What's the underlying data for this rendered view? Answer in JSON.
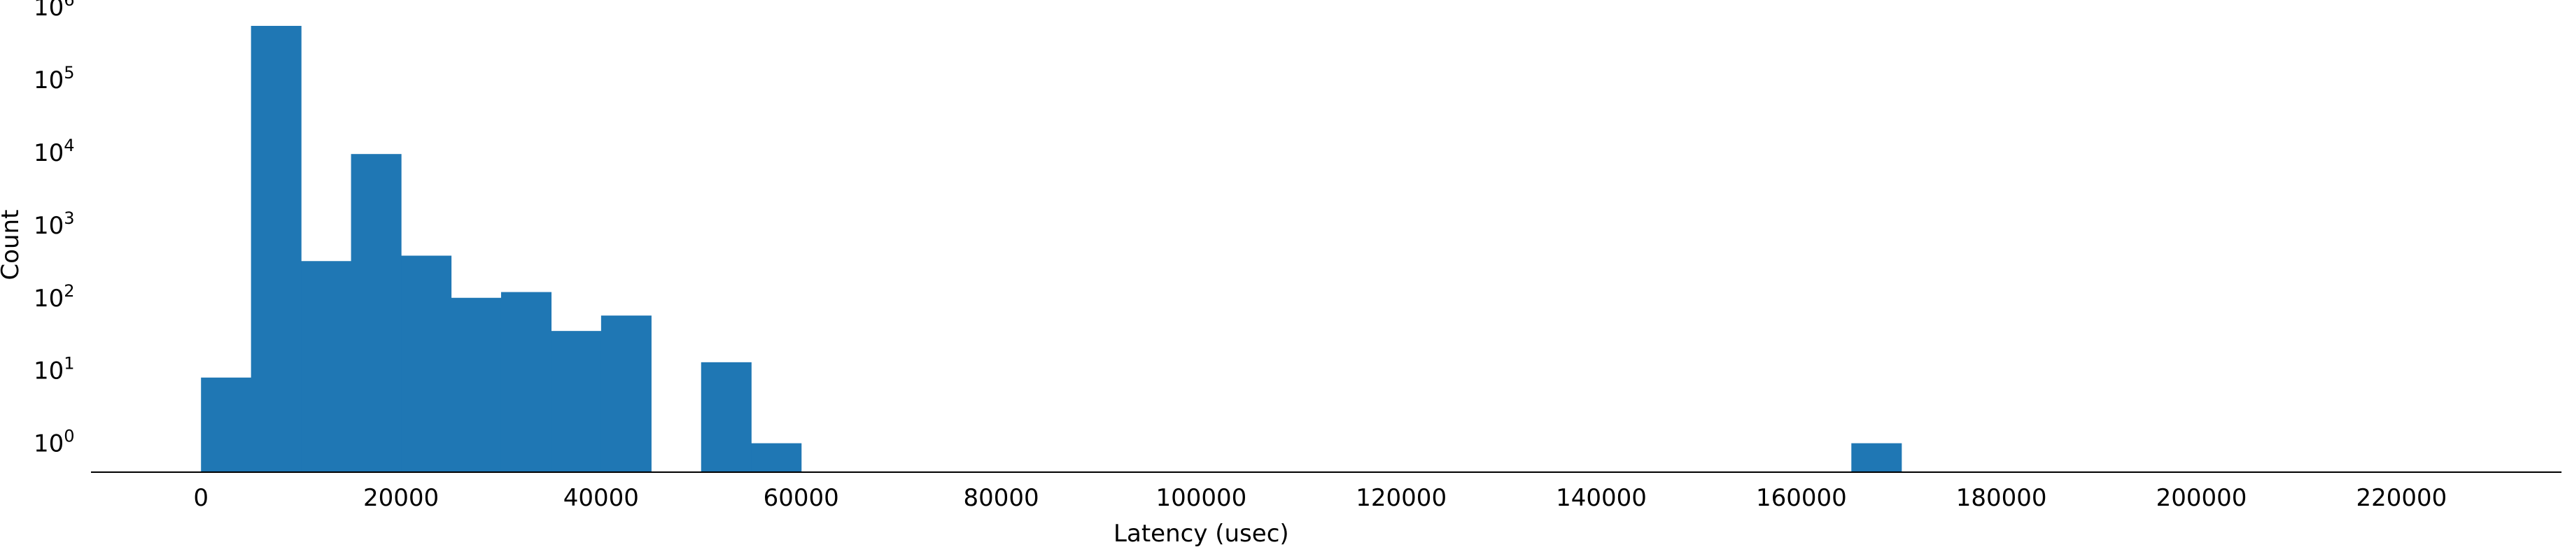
{
  "chart_data": {
    "type": "bar",
    "title": "",
    "xlabel": "Latency (usec)",
    "ylabel": "Count",
    "yscale": "log",
    "ylim": [
      0.4,
      1000000
    ],
    "xlim": [
      -11000,
      236000
    ],
    "bin_width": 5000,
    "bars_color": "#1f77b4",
    "x_ticks": [
      0,
      20000,
      40000,
      60000,
      80000,
      100000,
      120000,
      140000,
      160000,
      180000,
      200000,
      220000
    ],
    "x_tick_labels": [
      "0",
      "20000",
      "40000",
      "60000",
      "80000",
      "100000",
      "120000",
      "140000",
      "160000",
      "180000",
      "200000",
      "220000"
    ],
    "y_ticks": [
      {
        "base": "10",
        "exp": "0",
        "value": 1
      },
      {
        "base": "10",
        "exp": "1",
        "value": 10
      },
      {
        "base": "10",
        "exp": "2",
        "value": 100
      },
      {
        "base": "10",
        "exp": "3",
        "value": 1000
      },
      {
        "base": "10",
        "exp": "4",
        "value": 10000
      },
      {
        "base": "10",
        "exp": "5",
        "value": 100000
      },
      {
        "base": "10",
        "exp": "6",
        "value": 1000000
      }
    ],
    "bins": [
      {
        "start": 0,
        "end": 5000,
        "count": 8
      },
      {
        "start": 5000,
        "end": 10000,
        "count": 550000
      },
      {
        "start": 10000,
        "end": 15000,
        "count": 320
      },
      {
        "start": 15000,
        "end": 20000,
        "count": 9500
      },
      {
        "start": 20000,
        "end": 25000,
        "count": 380
      },
      {
        "start": 25000,
        "end": 30000,
        "count": 100
      },
      {
        "start": 30000,
        "end": 35000,
        "count": 120
      },
      {
        "start": 35000,
        "end": 40000,
        "count": 35
      },
      {
        "start": 40000,
        "end": 45000,
        "count": 57
      },
      {
        "start": 50000,
        "end": 55000,
        "count": 13
      },
      {
        "start": 55000,
        "end": 60000,
        "count": 1
      },
      {
        "start": 165000,
        "end": 170000,
        "count": 1
      }
    ],
    "grid": false,
    "legend": "none"
  }
}
